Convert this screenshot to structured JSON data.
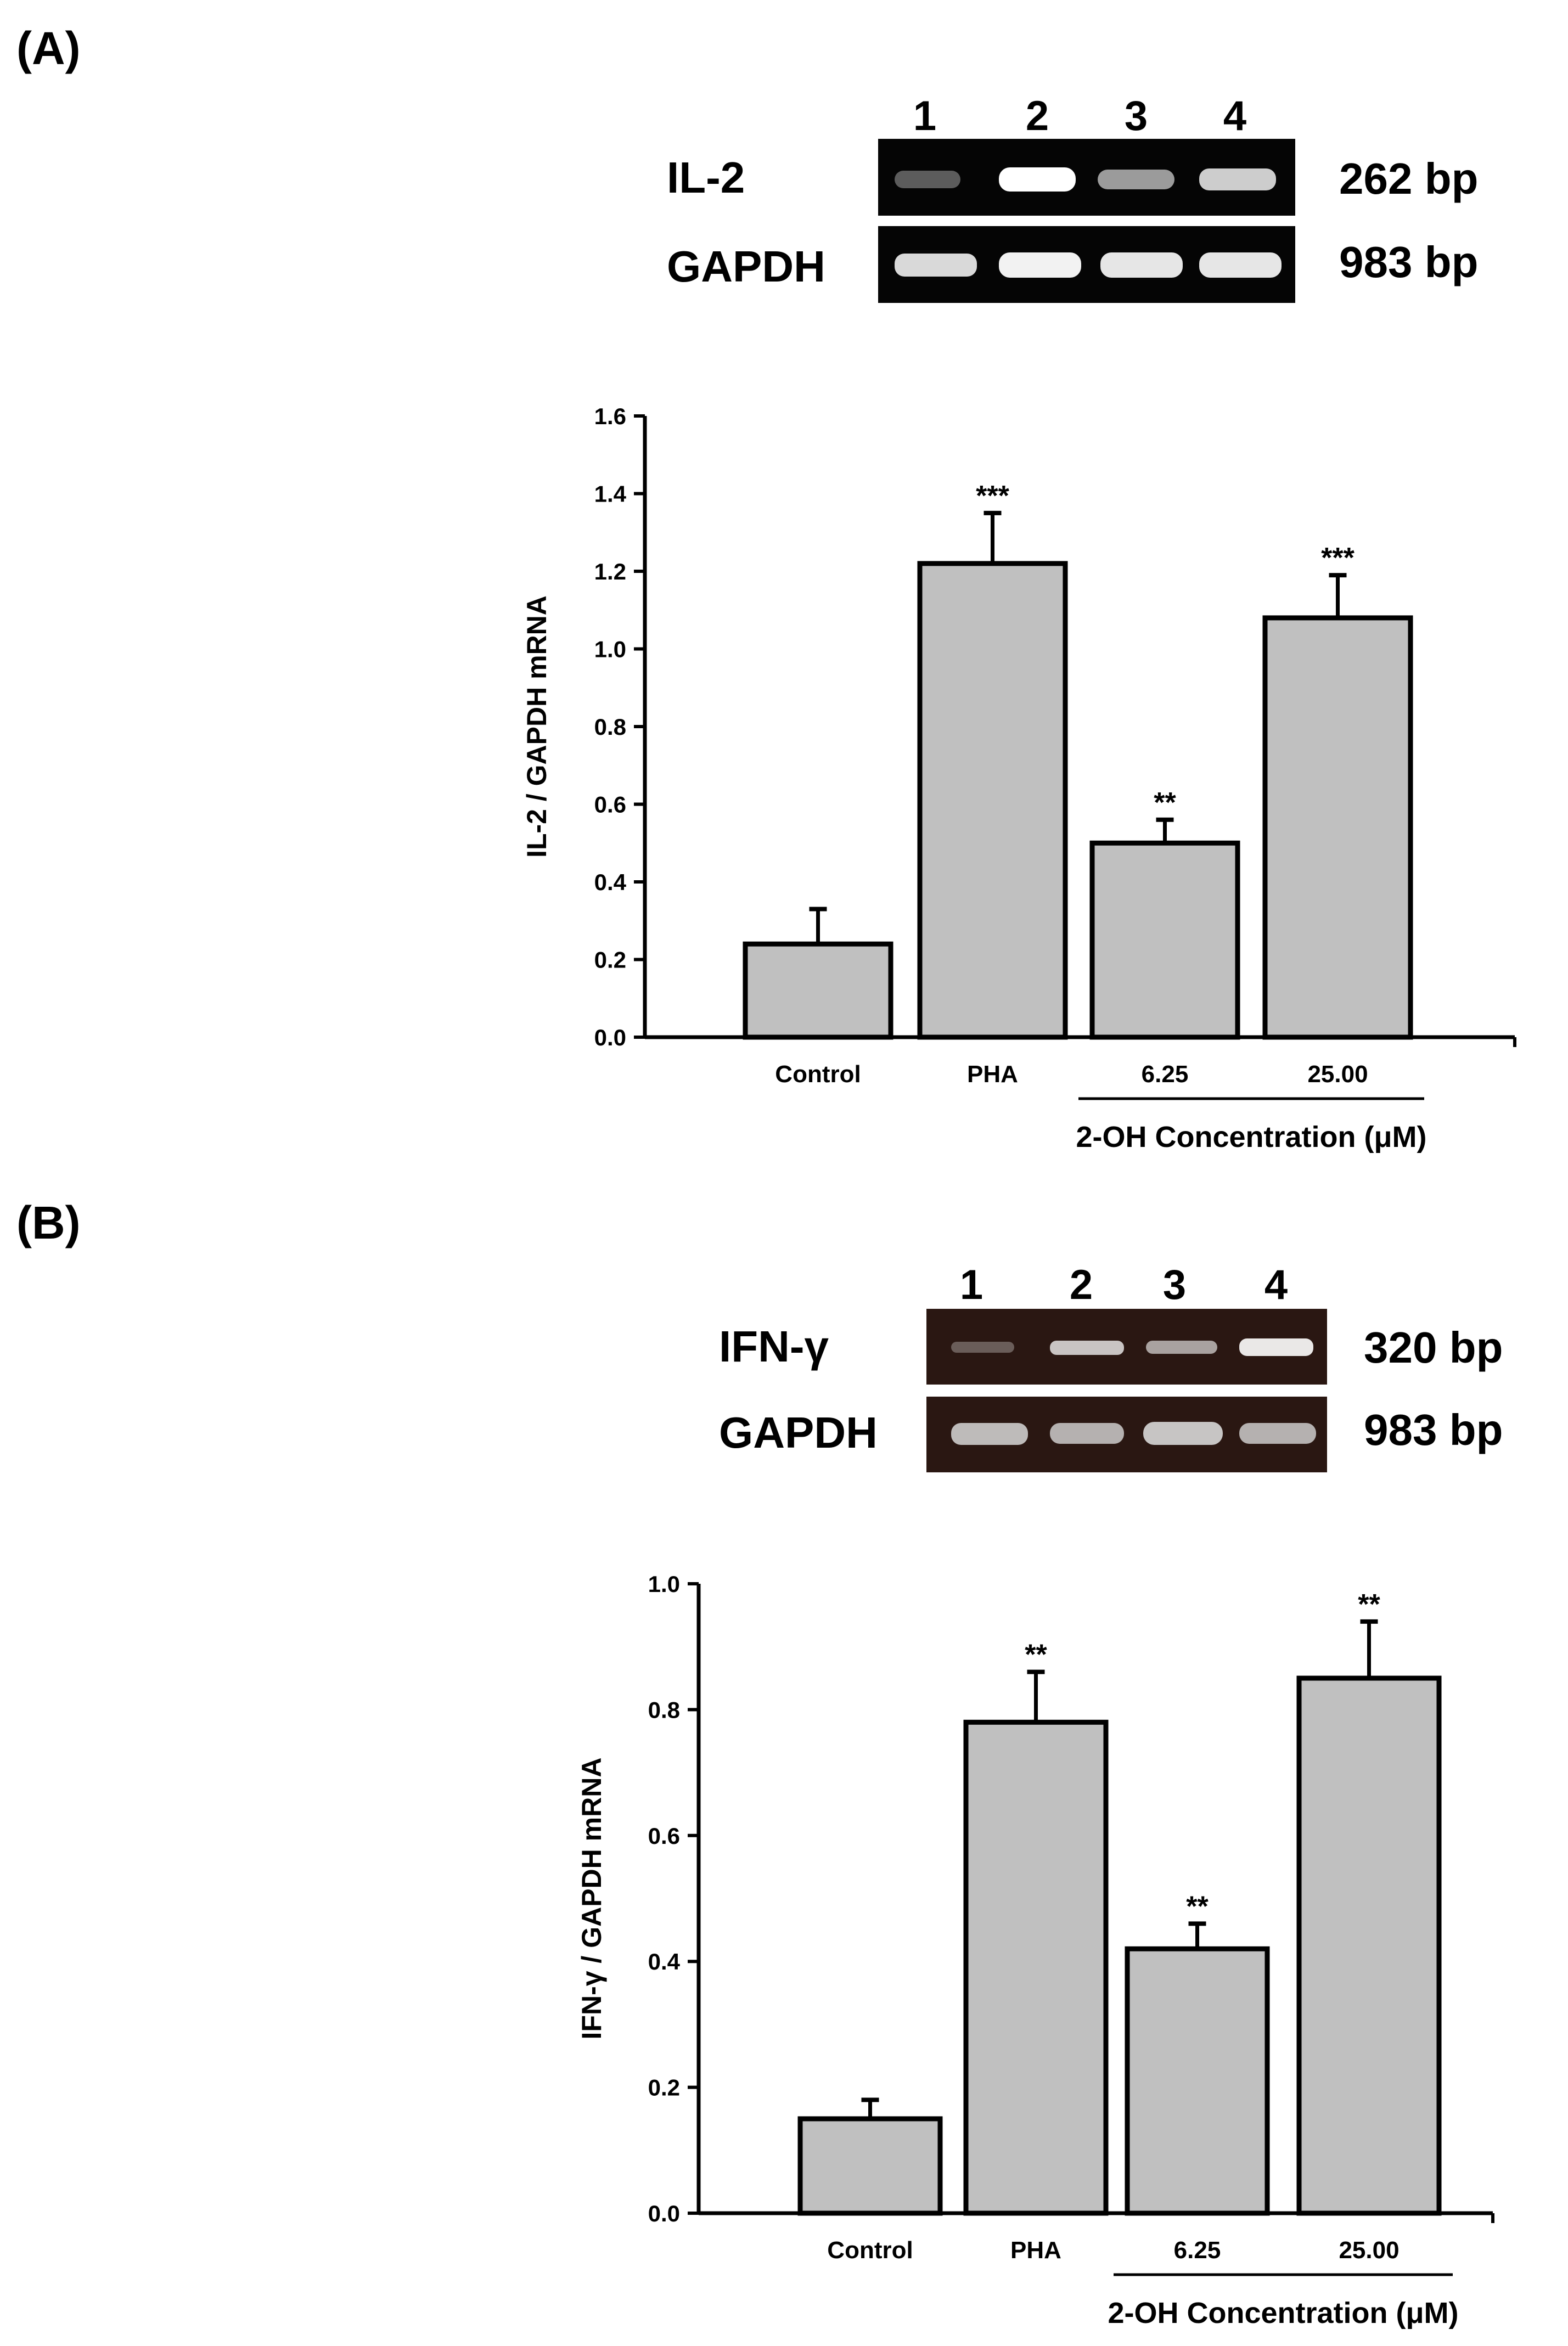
{
  "figure": {
    "panels": [
      {
        "label": "(A)",
        "gel": {
          "lane_numbers": [
            "1",
            "2",
            "3",
            "4"
          ],
          "rows": [
            {
              "name": "IL-2",
              "size": "262 bp",
              "intensities": [
                0.35,
                1.0,
                0.6,
                0.8
              ]
            },
            {
              "name": "GAPDH",
              "size": "983 bp",
              "intensities": [
                0.85,
                0.95,
                0.9,
                0.9
              ]
            }
          ],
          "background": "#050505"
        }
      },
      {
        "label": "(B)",
        "gel": {
          "lane_numbers": [
            "1",
            "2",
            "3",
            "4"
          ],
          "rows": [
            {
              "name": "IFN-γ",
              "size": "320 bp",
              "intensities": [
                0.3,
                0.75,
                0.6,
                0.9
              ]
            },
            {
              "name": "GAPDH",
              "size": "983 bp",
              "intensities": [
                0.85,
                0.8,
                0.9,
                0.8
              ]
            }
          ],
          "background": "#2a1712"
        }
      }
    ]
  },
  "chart_data": [
    {
      "type": "bar",
      "panel": "(A)",
      "categories": [
        "Control",
        "PHA",
        "6.25",
        "25.00"
      ],
      "values": [
        0.24,
        1.22,
        0.5,
        1.08
      ],
      "errors": [
        0.09,
        0.13,
        0.06,
        0.11
      ],
      "significance": [
        "",
        "***",
        "**",
        "***"
      ],
      "ylabel": "IL-2 / GAPDH mRNA",
      "xlabel": "2-OH Concentration (μM)",
      "ylim": [
        0,
        1.6
      ],
      "yticks": [
        "0.0",
        "0.2",
        "0.4",
        "0.6",
        "0.8",
        "1.0",
        "1.2",
        "1.4",
        "1.6"
      ],
      "bar_color": "#c0c0c0"
    },
    {
      "type": "bar",
      "panel": "(B)",
      "categories": [
        "Control",
        "PHA",
        "6.25",
        "25.00"
      ],
      "values": [
        0.15,
        0.78,
        0.42,
        0.85
      ],
      "errors": [
        0.03,
        0.08,
        0.04,
        0.09
      ],
      "significance": [
        "",
        "**",
        "**",
        "**"
      ],
      "ylabel": "IFN-γ / GAPDH mRNA",
      "xlabel": "2-OH Concentration (μM)",
      "ylim": [
        0,
        1.0
      ],
      "yticks": [
        "0.0",
        "0.2",
        "0.4",
        "0.6",
        "0.8",
        "1.0"
      ],
      "bar_color": "#c0c0c0"
    }
  ]
}
